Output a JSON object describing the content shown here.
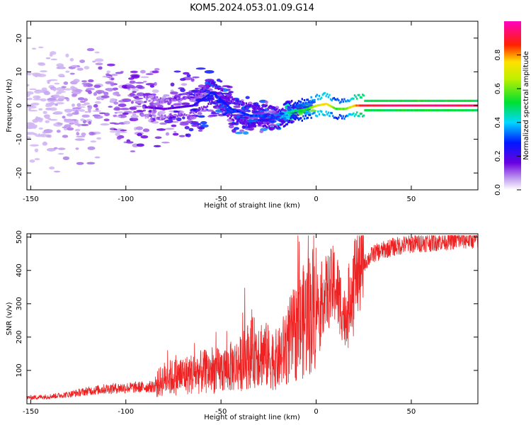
{
  "title": "KOM5.2024.053.01.09.G14",
  "colors": {
    "snr_line": "#ee2222",
    "axis": "#000000"
  },
  "chart_data": [
    {
      "type": "heatmap",
      "title": "KOM5.2024.053.01.09.G14",
      "xlabel": "Height of straight line (km)",
      "ylabel": "Frequency (Hz)",
      "xlim": [
        -152,
        85
      ],
      "ylim": [
        -25,
        25
      ],
      "x_ticks": [
        -150,
        -100,
        -50,
        0,
        50
      ],
      "y_ticks": [
        -20,
        -10,
        0,
        10,
        20
      ],
      "colorbar": {
        "label": "Normalized spectral amplitude",
        "range": [
          0,
          1
        ],
        "ticks": [
          "0.0",
          "0.2",
          "0.4",
          "0.6",
          "0.8"
        ],
        "colormap": "purple-blue-cyan-green-yellow-red-magenta"
      },
      "ridge": [
        {
          "x": -150,
          "y": 0,
          "amp": 0.04
        },
        {
          "x": -120,
          "y": 0,
          "amp": 0.1
        },
        {
          "x": -100,
          "y": 0,
          "amp": 0.14
        },
        {
          "x": -80,
          "y": -1,
          "amp": 0.16
        },
        {
          "x": -65,
          "y": 0,
          "amp": 0.22
        },
        {
          "x": -55,
          "y": 4,
          "amp": 0.28
        },
        {
          "x": -45,
          "y": -1,
          "amp": 0.28
        },
        {
          "x": -35,
          "y": -3,
          "amp": 0.3
        },
        {
          "x": -28,
          "y": -3,
          "amp": 0.3
        },
        {
          "x": -20,
          "y": -4,
          "amp": 0.32
        },
        {
          "x": -15,
          "y": -2,
          "amp": 0.45
        },
        {
          "x": -5,
          "y": -1,
          "amp": 0.55
        },
        {
          "x": 0,
          "y": 0,
          "amp": 0.7
        },
        {
          "x": 5,
          "y": 0.5,
          "amp": 0.75
        },
        {
          "x": 10,
          "y": -1,
          "amp": 0.55
        },
        {
          "x": 15,
          "y": -1,
          "amp": 0.6
        },
        {
          "x": 20,
          "y": 0,
          "amp": 0.8
        },
        {
          "x": 25,
          "y": 0,
          "amp": 0.9
        },
        {
          "x": 50,
          "y": 0,
          "amp": 0.95
        },
        {
          "x": 85,
          "y": 0,
          "amp": 0.92
        }
      ]
    },
    {
      "type": "line",
      "xlabel": "Height of straight line (km)",
      "ylabel": "SNR (v/v)",
      "xlim": [
        -152,
        85
      ],
      "ylim": [
        0,
        510
      ],
      "x_ticks": [
        -150,
        -100,
        -50,
        0,
        50
      ],
      "y_ticks": [
        100,
        200,
        300,
        400,
        500
      ],
      "x": [
        -152,
        -140,
        -130,
        -120,
        -110,
        -100,
        -90,
        -85,
        -80,
        -70,
        -60,
        -50,
        -40,
        -35,
        -30,
        -25,
        -20,
        -15,
        -10,
        -5,
        0,
        5,
        10,
        15,
        20,
        25,
        30,
        40,
        50,
        60,
        70,
        85
      ],
      "y": [
        18,
        22,
        28,
        38,
        45,
        48,
        50,
        52,
        75,
        85,
        95,
        100,
        120,
        150,
        160,
        140,
        130,
        180,
        220,
        260,
        300,
        330,
        360,
        260,
        380,
        420,
        450,
        470,
        480,
        485,
        490,
        495
      ]
    }
  ]
}
